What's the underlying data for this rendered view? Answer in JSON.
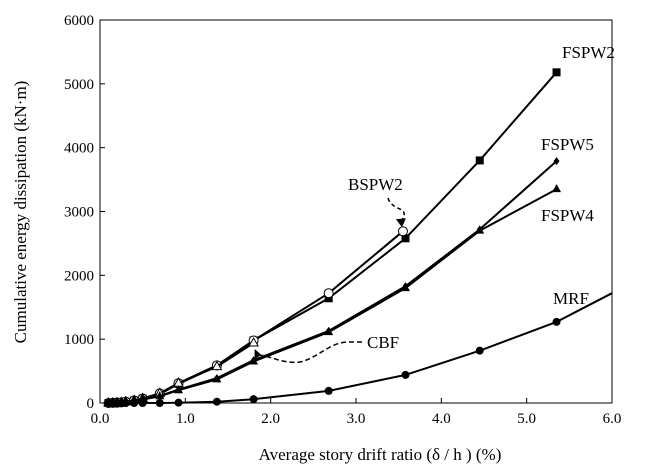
{
  "chart_data": {
    "type": "line",
    "title": "",
    "xlabel": "Average story drift ratio (δ / h ) (%)",
    "ylabel": "Cumulative energy dissipation (kN·m)",
    "xlim": [
      0.0,
      6.0
    ],
    "ylim": [
      0,
      6000
    ],
    "x_ticks": [
      "0.0",
      "1.0",
      "2.0",
      "3.0",
      "4.0",
      "5.0",
      "6.0"
    ],
    "y_ticks": [
      "0",
      "1000",
      "2000",
      "3000",
      "4000",
      "5000",
      "6000"
    ],
    "grid": false,
    "legend": "none",
    "series": [
      {
        "name": "FSPW2",
        "marker": "square",
        "x": [
          0.1,
          0.15,
          0.2,
          0.25,
          0.3,
          0.4,
          0.5,
          0.7,
          0.92,
          1.37,
          1.8,
          2.68,
          3.58,
          4.45,
          5.35
        ],
        "y": [
          0,
          2,
          5,
          10,
          20,
          40,
          70,
          140,
          300,
          580,
          980,
          1640,
          2580,
          3800,
          5180
        ]
      },
      {
        "name": "BSPW2",
        "marker": "circle-open",
        "x": [
          0.1,
          0.15,
          0.2,
          0.25,
          0.3,
          0.4,
          0.5,
          0.7,
          0.92,
          1.37,
          1.8,
          2.68,
          3.55
        ],
        "y": [
          0,
          2,
          5,
          10,
          20,
          40,
          70,
          150,
          310,
          590,
          980,
          1720,
          2690
        ]
      },
      {
        "name": "CBF",
        "marker": "triangle-open",
        "x": [
          0.1,
          0.15,
          0.2,
          0.25,
          0.3,
          0.4,
          0.5,
          0.7,
          0.92,
          1.37,
          1.8
        ],
        "y": [
          0,
          2,
          5,
          10,
          20,
          40,
          70,
          150,
          310,
          570,
          940
        ]
      },
      {
        "name": "FSPW5",
        "marker": "diamond",
        "x": [
          0.1,
          0.15,
          0.2,
          0.25,
          0.3,
          0.4,
          0.5,
          0.7,
          0.92,
          1.37,
          1.8,
          2.68,
          3.58,
          4.45,
          5.35
        ],
        "y": [
          0,
          2,
          5,
          8,
          15,
          30,
          55,
          110,
          210,
          390,
          670,
          1130,
          1830,
          2720,
          3790
        ]
      },
      {
        "name": "FSPW4",
        "marker": "triangle",
        "x": [
          0.1,
          0.15,
          0.2,
          0.25,
          0.3,
          0.4,
          0.5,
          0.7,
          0.92,
          1.37,
          1.8,
          2.68,
          3.58,
          4.45,
          5.35
        ],
        "y": [
          0,
          2,
          5,
          8,
          15,
          30,
          55,
          105,
          200,
          370,
          650,
          1110,
          1800,
          2700,
          3350
        ]
      },
      {
        "name": "MRF",
        "marker": "circle",
        "x": [
          0.1,
          0.15,
          0.2,
          0.25,
          0.3,
          0.4,
          0.5,
          0.7,
          0.92,
          1.37,
          1.8,
          2.68,
          3.58,
          4.45,
          5.35,
          6.0
        ],
        "y": [
          0,
          0,
          0,
          0,
          0,
          0,
          0,
          0,
          5,
          20,
          60,
          190,
          440,
          820,
          1270,
          1720
        ]
      }
    ],
    "annotations": [
      {
        "text": "FSPW2",
        "series": "FSPW2"
      },
      {
        "text": "FSPW5",
        "series": "FSPW5"
      },
      {
        "text": "FSPW4",
        "series": "FSPW4"
      },
      {
        "text": "BSPW2",
        "series": "BSPW2"
      },
      {
        "text": "CBF",
        "series": "CBF"
      },
      {
        "text": "MRF",
        "series": "MRF"
      }
    ]
  }
}
